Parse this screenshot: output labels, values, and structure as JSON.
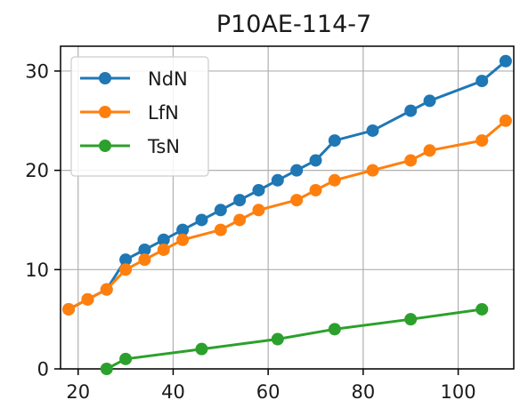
{
  "chart_data": {
    "type": "line",
    "title": "P10AE-114-7",
    "xlabel": "",
    "ylabel": "",
    "xlim": [
      16.3,
      111.7
    ],
    "ylim": [
      0,
      32.5
    ],
    "x_ticks": [
      20,
      40,
      60,
      80,
      100
    ],
    "y_ticks": [
      0,
      10,
      20,
      30
    ],
    "grid": true,
    "legend_position": "top-left",
    "series": [
      {
        "name": "NdN",
        "color": "#1f77b4",
        "points": [
          [
            18,
            6
          ],
          [
            22,
            7
          ],
          [
            26,
            8
          ],
          [
            30,
            11
          ],
          [
            34,
            12
          ],
          [
            38,
            13
          ],
          [
            42,
            14
          ],
          [
            46,
            15
          ],
          [
            50,
            16
          ],
          [
            54,
            17
          ],
          [
            58,
            18
          ],
          [
            62,
            19
          ],
          [
            66,
            20
          ],
          [
            70,
            21
          ],
          [
            74,
            23
          ],
          [
            82,
            24
          ],
          [
            90,
            26
          ],
          [
            94,
            27
          ],
          [
            105,
            29
          ],
          [
            110,
            31
          ]
        ]
      },
      {
        "name": "LfN",
        "color": "#ff7f0e",
        "points": [
          [
            18,
            6
          ],
          [
            22,
            7
          ],
          [
            26,
            8
          ],
          [
            30,
            10
          ],
          [
            34,
            11
          ],
          [
            38,
            12
          ],
          [
            42,
            13
          ],
          [
            50,
            14
          ],
          [
            54,
            15
          ],
          [
            58,
            16
          ],
          [
            66,
            17
          ],
          [
            70,
            18
          ],
          [
            74,
            19
          ],
          [
            82,
            20
          ],
          [
            90,
            21
          ],
          [
            94,
            22
          ],
          [
            105,
            23
          ],
          [
            110,
            25
          ]
        ]
      },
      {
        "name": "TsN",
        "color": "#2ca02c",
        "points": [
          [
            26,
            0
          ],
          [
            30,
            1
          ],
          [
            46,
            2
          ],
          [
            62,
            3
          ],
          [
            74,
            4
          ],
          [
            90,
            5
          ],
          [
            105,
            6
          ]
        ]
      }
    ]
  }
}
